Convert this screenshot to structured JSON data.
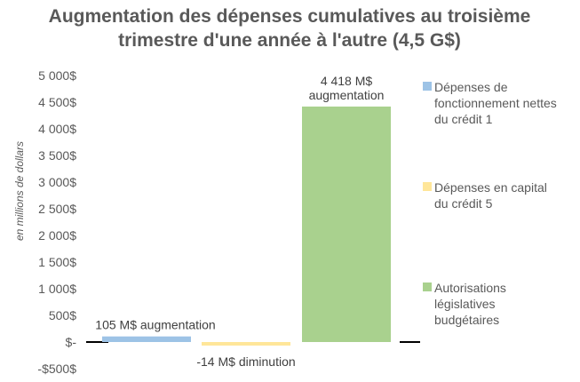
{
  "chart_data": {
    "type": "bar",
    "title_lines": [
      "Augmentation des dépenses cumulatives au troisième",
      "trimestre d'une année à l'autre (4,5 G$)"
    ],
    "ylabel": "en millions de dollars",
    "xlabel": "",
    "ylim": [
      -500,
      5000
    ],
    "ytick_values": [
      -500,
      0,
      500,
      1000,
      1500,
      2000,
      2500,
      3000,
      3500,
      4000,
      4500,
      5000
    ],
    "ytick_labels": [
      "-$500$",
      "$-",
      "500$",
      "1 000$",
      "1 500$",
      "2 000$",
      "2 500$",
      "3 000$",
      "3 500$",
      "4 000$",
      "4 500$",
      "5 000$"
    ],
    "grid": false,
    "legend_position": "right",
    "series": [
      {
        "name": "Dépenses de fonctionnement nettes du crédit 1",
        "legend_lines": [
          "Dépenses de",
          "fonctionnement nettes",
          "du crédit 1"
        ],
        "value": 105,
        "color": "#9DC3E6",
        "label_lines": [
          "105 M$ augmentation"
        ]
      },
      {
        "name": "Dépenses en capital du crédit 5",
        "legend_lines": [
          "Dépenses en capital",
          "du crédit 5"
        ],
        "value": -14,
        "color": "#FFE699",
        "label_lines": [
          "-14 M$ diminution"
        ]
      },
      {
        "name": "Autorisations législatives budgétaires",
        "legend_lines": [
          "Autorisations",
          "législatives",
          "budgétaires"
        ],
        "value": 4418,
        "color": "#A9D18E",
        "label_lines": [
          "4 418 M$",
          "augmentation"
        ]
      }
    ]
  }
}
